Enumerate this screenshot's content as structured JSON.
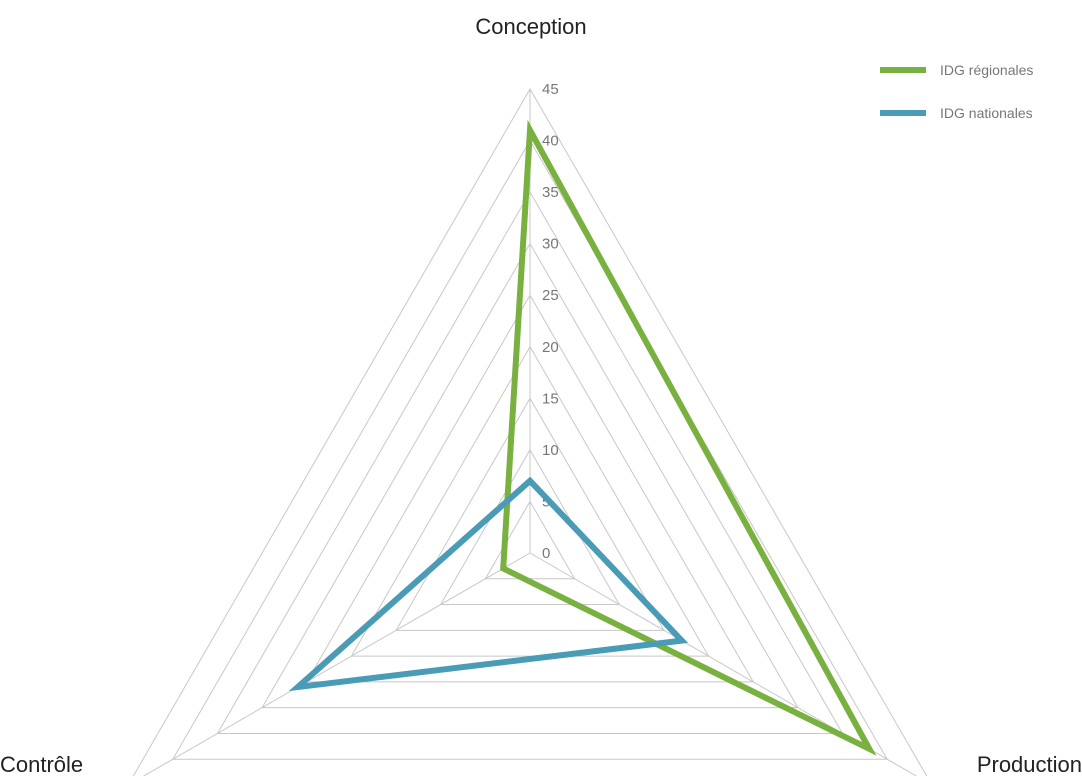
{
  "chart_data": {
    "type": "radar",
    "categories": [
      "Conception",
      "Production",
      "Contrôle"
    ],
    "rlim": [
      0,
      45
    ],
    "ticks": [
      0,
      5,
      10,
      15,
      20,
      25,
      30,
      35,
      40,
      45
    ],
    "grid": true,
    "legend": "top-right",
    "series": [
      {
        "name": "IDG régionales",
        "color": "#79b140",
        "values": [
          41,
          38,
          3
        ]
      },
      {
        "name": "IDG nationales",
        "color": "#4a9bb5",
        "values": [
          7,
          17,
          26
        ]
      }
    ]
  }
}
